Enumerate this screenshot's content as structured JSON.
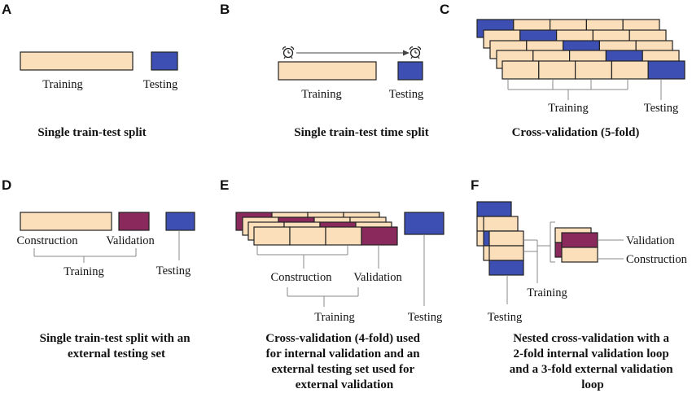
{
  "colors": {
    "training": "#fbdfbb",
    "testing": "#3d4fb3",
    "validation": "#8a2a5c",
    "stroke": "#222222"
  },
  "panels": {
    "a": {
      "letter": "A",
      "training_label": "Training",
      "testing_label": "Testing",
      "caption": [
        "Single train-test split"
      ]
    },
    "b": {
      "letter": "B",
      "training_label": "Training",
      "testing_label": "Testing",
      "start_icon": "alarm-clock-icon",
      "end_icon": "alarm-clock-icon",
      "caption": [
        "Single train-test time split"
      ]
    },
    "c": {
      "letter": "C",
      "training_label": "Training",
      "testing_label": "Testing",
      "caption": [
        "Cross-validation (5-fold)"
      ]
    },
    "d": {
      "letter": "D",
      "construction_label": "Construction",
      "validation_label": "Validation",
      "training_label": "Training",
      "testing_label": "Testing",
      "caption": [
        "Single train-test split with an",
        "external testing set"
      ]
    },
    "e": {
      "letter": "E",
      "construction_label": "Construction",
      "validation_label": "Validation",
      "training_label": "Training",
      "testing_label": "Testing",
      "caption": [
        "Cross-validation (4-fold) used",
        "for internal validation and an",
        "external testing set used for",
        "external validation"
      ]
    },
    "f": {
      "letter": "F",
      "validation_label": "Validation",
      "construction_label": "Construction",
      "training_label": "Training",
      "testing_label": "Testing",
      "caption": [
        "Nested cross-validation with a",
        "2-fold internal validation loop",
        "and a 3-fold external validation",
        "loop"
      ]
    }
  }
}
